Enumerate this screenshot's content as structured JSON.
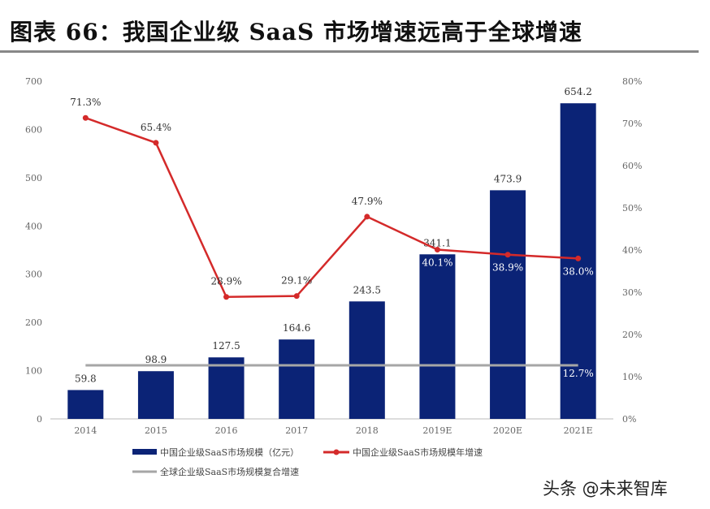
{
  "title": "图表 66：我国企业级 SaaS 市场增速远高于全球增速",
  "watermark": "头条 @未来智库",
  "colors": {
    "bar": "#0b2376",
    "line": "#d42a2a",
    "global": "#a6a6a6"
  },
  "chart_data": {
    "type": "bar+line",
    "categories": [
      "2014",
      "2015",
      "2016",
      "2017",
      "2018",
      "2019E",
      "2020E",
      "2021E"
    ],
    "y_left": {
      "range": [
        0,
        700
      ],
      "ticks": [
        "0",
        "100",
        "200",
        "300",
        "400",
        "500",
        "600",
        "700"
      ]
    },
    "y_right": {
      "range": [
        0,
        80
      ],
      "ticks": [
        "0%",
        "10%",
        "20%",
        "30%",
        "40%",
        "50%",
        "60%",
        "70%",
        "80%"
      ]
    },
    "grid": false,
    "legend_placement": "bottom-left",
    "series": [
      {
        "name": "中国企业级SaaS市场规模（亿元）",
        "type": "bar",
        "axis": "left",
        "values": [
          59.8,
          98.9,
          127.5,
          164.6,
          243.5,
          341.1,
          473.9,
          654.2
        ],
        "labels": [
          "59.8",
          "98.9",
          "127.5",
          "164.6",
          "243.5",
          "341.1",
          "473.9",
          "654.2"
        ]
      },
      {
        "name": "中国企业级SaaS市场规模年增速",
        "type": "line",
        "axis": "right",
        "values": [
          71.3,
          65.4,
          28.9,
          29.1,
          47.9,
          40.1,
          38.9,
          38.0
        ],
        "labels": [
          "71.3%",
          "65.4%",
          "28.9%",
          "29.1%",
          "47.9%",
          "40.1%",
          "38.9%",
          "38.0%"
        ]
      },
      {
        "name": "全球企业级SaaS市场规模复合增速",
        "type": "line",
        "axis": "right",
        "values": [
          12.7,
          12.7,
          12.7,
          12.7,
          12.7,
          12.7,
          12.7,
          12.7
        ],
        "labels": [
          "12.7%"
        ]
      }
    ]
  }
}
